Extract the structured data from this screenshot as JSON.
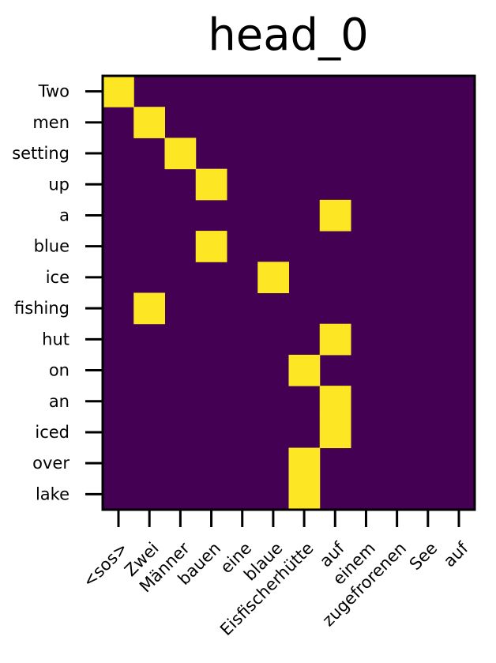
{
  "chart_data": {
    "type": "heatmap",
    "title": "head_0",
    "x_labels": [
      "<sos>",
      "Zwei",
      "Männer",
      "bauen",
      "eine",
      "blaue",
      "Eisfischerhütte",
      "auf",
      "einem",
      "zugefrorenen",
      "See",
      "auf"
    ],
    "y_labels": [
      "Two",
      "men",
      "setting",
      "up",
      "a",
      "blue",
      "ice",
      "fishing",
      "hut",
      "on",
      "an",
      "iced",
      "over",
      "lake"
    ],
    "values": [
      [
        1,
        0,
        0,
        0,
        0,
        0,
        0,
        0,
        0,
        0,
        0,
        0
      ],
      [
        0,
        1,
        0,
        0,
        0,
        0,
        0,
        0,
        0,
        0,
        0,
        0
      ],
      [
        0,
        0,
        1,
        0,
        0,
        0,
        0,
        0,
        0,
        0,
        0,
        0
      ],
      [
        0,
        0,
        0,
        1,
        0,
        0,
        0,
        0,
        0,
        0,
        0,
        0
      ],
      [
        0,
        0,
        0,
        0,
        0,
        0,
        0,
        1,
        0,
        0,
        0,
        0
      ],
      [
        0,
        0,
        0,
        1,
        0,
        0,
        0,
        0,
        0,
        0,
        0,
        0
      ],
      [
        0,
        0,
        0,
        0,
        0,
        1,
        0,
        0,
        0,
        0,
        0,
        0
      ],
      [
        0,
        1,
        0,
        0,
        0,
        0,
        0,
        0,
        0,
        0,
        0,
        0
      ],
      [
        0,
        0,
        0,
        0,
        0,
        0,
        0,
        1,
        0,
        0,
        0,
        0
      ],
      [
        0,
        0,
        0,
        0,
        0,
        0,
        1,
        0,
        0,
        0,
        0,
        0
      ],
      [
        0,
        0,
        0,
        0,
        0,
        0,
        0,
        1,
        0,
        0,
        0,
        0
      ],
      [
        0,
        0,
        0,
        0,
        0,
        0,
        0,
        1,
        0,
        0,
        0,
        0
      ],
      [
        0,
        0,
        0,
        0,
        0,
        0,
        1,
        0,
        0,
        0,
        0,
        0
      ],
      [
        0,
        0,
        0,
        0,
        0,
        0,
        1,
        0,
        0,
        0,
        0,
        0
      ]
    ],
    "colormap": "viridis",
    "low_color": "#440154",
    "high_color": "#fde725"
  }
}
